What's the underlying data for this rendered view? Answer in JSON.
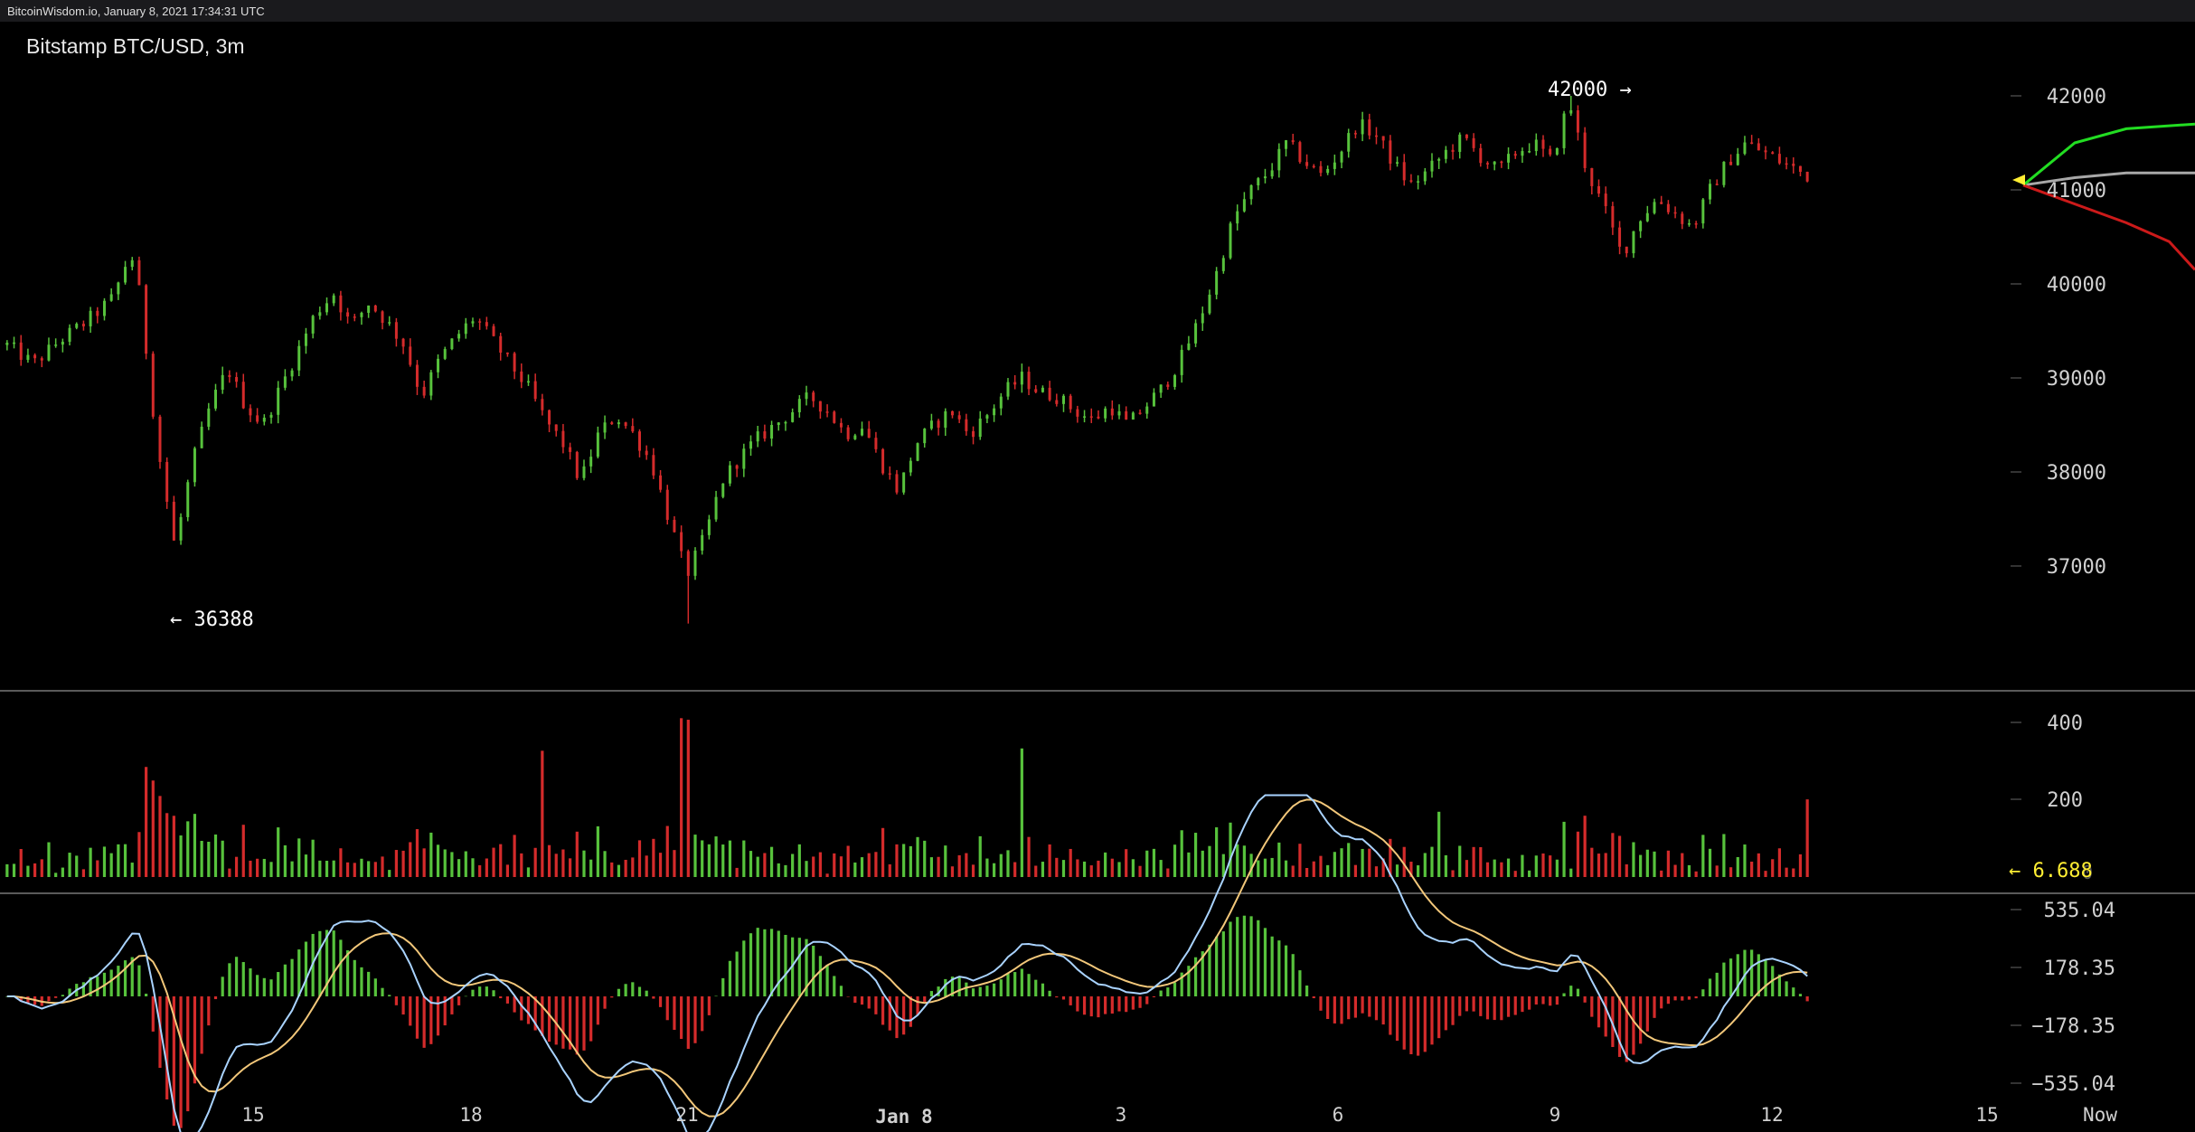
{
  "window": {
    "title": "BitcoinWisdom.io, January 8, 2021 17:34:31 UTC"
  },
  "colors": {
    "background": "#000000",
    "frame": "#1a1a1d",
    "up": "#57c23c",
    "down": "#d42b2b",
    "text": "#d0d0d0",
    "highlight": "#ffee33",
    "macd_line": "#a9d3ff",
    "signal_line": "#f2c77a",
    "depth_bid": "#22dd22",
    "depth_ask": "#cc1a1a",
    "depth_mid": "#a8a8a8"
  },
  "chart_data": [
    {
      "type": "candlestick",
      "title": "Bitstamp BTC/USD, 3m",
      "yticks": [
        "42000",
        "41000",
        "40000",
        "39000",
        "38000",
        "37000"
      ],
      "ylim": [
        36000,
        42500
      ],
      "xticks": [
        "15",
        "18",
        "21",
        "Jan 8",
        "3",
        "6",
        "9",
        "12",
        "15",
        "Now"
      ],
      "annotations": {
        "high": "42000",
        "low": "36388"
      },
      "price_path": [
        [
          0,
          39350
        ],
        [
          3,
          39150
        ],
        [
          6,
          39400
        ],
        [
          9,
          39600
        ],
        [
          12,
          39850
        ],
        [
          14,
          40350
        ],
        [
          15,
          39900
        ],
        [
          17,
          38300
        ],
        [
          19,
          37200
        ],
        [
          21,
          38100
        ],
        [
          23,
          38700
        ],
        [
          25,
          39100
        ],
        [
          27,
          38700
        ],
        [
          29,
          38500
        ],
        [
          31,
          38900
        ],
        [
          33,
          39300
        ],
        [
          35,
          39700
        ],
        [
          37,
          39900
        ],
        [
          39,
          39550
        ],
        [
          41,
          39800
        ],
        [
          43,
          39600
        ],
        [
          45,
          39350
        ],
        [
          47,
          38800
        ],
        [
          49,
          39200
        ],
        [
          51,
          39450
        ],
        [
          53,
          39650
        ],
        [
          55,
          39400
        ],
        [
          57,
          39150
        ],
        [
          59,
          38900
        ],
        [
          61,
          38550
        ],
        [
          63,
          38300
        ],
        [
          65,
          37900
        ],
        [
          67,
          38400
        ],
        [
          69,
          38600
        ],
        [
          71,
          38400
        ],
        [
          73,
          38100
        ],
        [
          75,
          37500
        ],
        [
          77,
          36900
        ],
        [
          79,
          37300
        ],
        [
          81,
          37900
        ],
        [
          83,
          38150
        ],
        [
          85,
          38350
        ],
        [
          87,
          38500
        ],
        [
          89,
          38650
        ],
        [
          91,
          38800
        ],
        [
          93,
          38650
        ],
        [
          95,
          38400
        ],
        [
          97,
          38500
        ],
        [
          99,
          38100
        ],
        [
          101,
          37800
        ],
        [
          103,
          38300
        ],
        [
          105,
          38500
        ],
        [
          107,
          38650
        ],
        [
          109,
          38400
        ],
        [
          111,
          38600
        ],
        [
          113,
          38850
        ],
        [
          115,
          39000
        ],
        [
          117,
          38850
        ],
        [
          119,
          38800
        ],
        [
          121,
          38650
        ],
        [
          123,
          38550
        ],
        [
          125,
          38700
        ],
        [
          127,
          38500
        ],
        [
          129,
          38700
        ],
        [
          131,
          38900
        ],
        [
          133,
          39200
        ],
        [
          135,
          39600
        ],
        [
          137,
          40100
        ],
        [
          139,
          40700
        ],
        [
          141,
          41000
        ],
        [
          143,
          41200
        ],
        [
          145,
          41500
        ],
        [
          147,
          41300
        ],
        [
          149,
          41150
        ],
        [
          151,
          41400
        ],
        [
          153,
          41700
        ],
        [
          155,
          41600
        ],
        [
          157,
          41300
        ],
        [
          159,
          41050
        ],
        [
          161,
          41200
        ],
        [
          163,
          41400
        ],
        [
          165,
          41550
        ],
        [
          167,
          41350
        ],
        [
          169,
          41200
        ],
        [
          171,
          41400
        ],
        [
          173,
          41500
        ],
        [
          175,
          41300
        ],
        [
          177,
          41950
        ],
        [
          179,
          41200
        ],
        [
          181,
          40800
        ],
        [
          183,
          40300
        ],
        [
          185,
          40700
        ],
        [
          187,
          40900
        ],
        [
          189,
          40750
        ],
        [
          191,
          40600
        ],
        [
          193,
          41000
        ],
        [
          195,
          41300
        ],
        [
          197,
          41500
        ],
        [
          199,
          41400
        ],
        [
          201,
          41300
        ],
        [
          204,
          41150
        ]
      ],
      "depth_curves": {
        "bid": [
          [
            0,
            41050
          ],
          [
            0.1,
            41200
          ],
          [
            0.3,
            41500
          ],
          [
            0.6,
            41650
          ],
          [
            1,
            41700
          ]
        ],
        "mid": [
          [
            0,
            41050
          ],
          [
            0.3,
            41130
          ],
          [
            0.6,
            41180
          ],
          [
            1,
            41180
          ]
        ],
        "ask": [
          [
            0,
            41050
          ],
          [
            0.3,
            40850
          ],
          [
            0.6,
            40650
          ],
          [
            0.85,
            40450
          ],
          [
            1,
            40150
          ]
        ]
      }
    },
    {
      "type": "bar",
      "name": "volume",
      "yticks": [
        "400",
        "200"
      ],
      "ylim": [
        0,
        450
      ],
      "current": "← 6.688",
      "current_value": 6.688
    },
    {
      "type": "histogram",
      "name": "macd",
      "yticks": [
        "535.04",
        "178.35",
        "−178.35",
        "−535.04"
      ],
      "ylim": [
        -620,
        620
      ]
    }
  ]
}
